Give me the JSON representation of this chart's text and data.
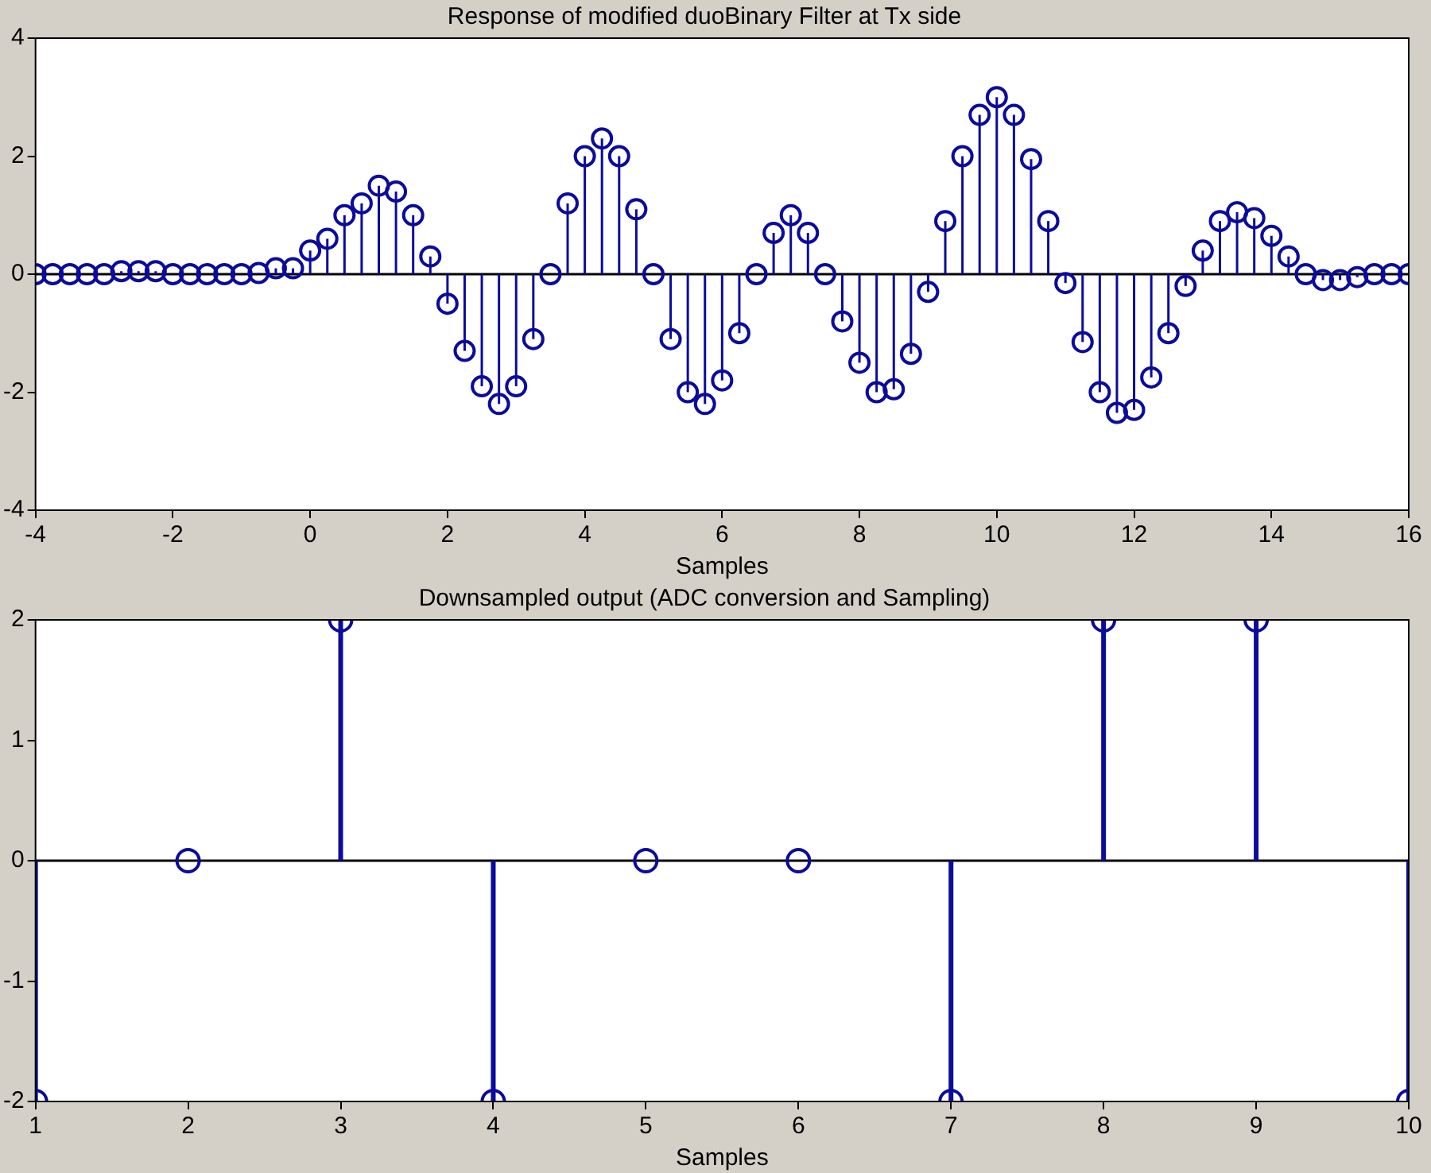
{
  "chart_data": [
    {
      "type": "lollipop",
      "title": "Response of modified duoBinary Filter at Tx side",
      "xlabel": "Samples",
      "x": [
        -4,
        -3.75,
        -3.5,
        -3.25,
        -3,
        -2.75,
        -2.5,
        -2.25,
        -2,
        -1.75,
        -1.5,
        -1.25,
        -1,
        -0.75,
        -0.5,
        -0.25,
        0,
        0.25,
        0.5,
        0.75,
        1,
        1.25,
        1.5,
        1.75,
        2,
        2.25,
        2.5,
        2.75,
        3,
        3.25,
        3.5,
        3.75,
        4,
        4.25,
        4.5,
        4.75,
        5,
        5.25,
        5.5,
        5.75,
        6,
        6.25,
        6.5,
        6.75,
        7,
        7.25,
        7.5,
        7.75,
        8,
        8.25,
        8.5,
        8.75,
        9,
        9.25,
        9.5,
        9.75,
        10,
        10.25,
        10.5,
        10.75,
        11,
        11.25,
        11.5,
        11.75,
        12,
        12.25,
        12.5,
        12.75,
        13,
        13.25,
        13.5,
        13.75,
        14,
        14.25,
        14.5,
        14.75,
        15,
        15.25,
        15.5,
        15.75,
        16
      ],
      "series": [
        {
          "color": "#0b0b9c",
          "values": [
            0,
            0,
            0,
            0,
            0,
            0.05,
            0.05,
            0.05,
            0,
            0,
            0,
            0,
            0,
            0.02,
            0.1,
            0.1,
            0.4,
            0.6,
            1.0,
            1.2,
            1.5,
            1.4,
            1.0,
            0.3,
            -0.5,
            -1.3,
            -1.9,
            -2.2,
            -1.9,
            -1.1,
            0,
            1.2,
            2.0,
            2.3,
            2.0,
            1.1,
            0,
            -1.1,
            -2.0,
            -2.2,
            -1.8,
            -1.0,
            0,
            0.7,
            1.0,
            0.7,
            0,
            -0.8,
            -1.5,
            -2.0,
            -1.95,
            -1.35,
            -0.3,
            0.9,
            2.0,
            2.7,
            3.0,
            2.7,
            1.95,
            0.9,
            -0.15,
            -1.15,
            -2.0,
            -2.35,
            -2.3,
            -1.75,
            -1.0,
            -0.2,
            0.4,
            0.9,
            1.05,
            0.95,
            0.65,
            0.3,
            0,
            -0.1,
            -0.1,
            -0.05,
            0,
            0,
            0
          ]
        }
      ],
      "xlim": [
        -4,
        16
      ],
      "xticks": [
        -4,
        -2,
        0,
        2,
        4,
        6,
        8,
        10,
        12,
        14,
        16
      ],
      "ylim": [
        -4,
        4
      ],
      "yticks": [
        -4,
        -2,
        0,
        2,
        4
      ],
      "marker": "circle",
      "ref_lines": [
        {
          "axis": "y",
          "value": 0,
          "color": "#000000"
        }
      ]
    },
    {
      "type": "lollipop",
      "title": "Downsampled output (ADC conversion and Sampling)",
      "xlabel": "Samples",
      "x": [
        1,
        2,
        3,
        4,
        5,
        6,
        7,
        8,
        9,
        10
      ],
      "series": [
        {
          "color": "#0b0b9c",
          "values": [
            -2,
            0,
            2,
            -2,
            0,
            0,
            -2,
            2,
            2,
            -2
          ]
        }
      ],
      "xlim": [
        1,
        10
      ],
      "xticks": [
        1,
        2,
        3,
        4,
        5,
        6,
        7,
        8,
        9,
        10
      ],
      "ylim": [
        -2,
        2
      ],
      "yticks": [
        -2,
        -1,
        0,
        1,
        2
      ],
      "marker": "circle",
      "ref_lines": [
        {
          "axis": "y",
          "value": 0,
          "color": "#000000"
        }
      ]
    }
  ]
}
